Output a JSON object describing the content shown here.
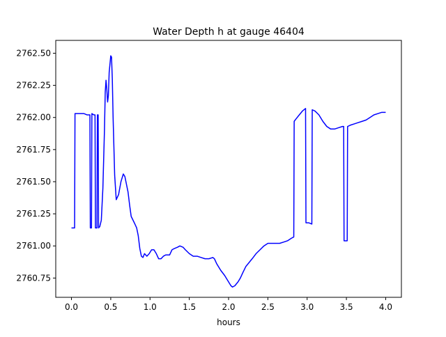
{
  "chart_data": {
    "type": "line",
    "title": "Water Depth h at gauge 46404",
    "xlabel": "hours",
    "ylabel": "",
    "xlim": [
      -0.2,
      4.2
    ],
    "ylim": [
      2760.6,
      2762.6
    ],
    "x_ticks": [
      0.0,
      0.5,
      1.0,
      1.5,
      2.0,
      2.5,
      3.0,
      3.5,
      4.0
    ],
    "x_tick_labels": [
      "0.0",
      "0.5",
      "1.0",
      "1.5",
      "2.0",
      "2.5",
      "3.0",
      "3.5",
      "4.0"
    ],
    "y_ticks": [
      2760.75,
      2761.0,
      2761.25,
      2761.5,
      2761.75,
      2762.0,
      2762.25,
      2762.5
    ],
    "y_tick_labels": [
      "2760.75",
      "2761.00",
      "2761.25",
      "2761.50",
      "2761.75",
      "2762.00",
      "2762.25",
      "2762.50"
    ],
    "grid": false,
    "legend": "none",
    "series": [
      {
        "color": "#0000ff",
        "points": [
          [
            0.0,
            2761.14
          ],
          [
            0.04,
            2761.14
          ],
          [
            0.045,
            2762.03
          ],
          [
            0.08,
            2762.03
          ],
          [
            0.12,
            2762.03
          ],
          [
            0.16,
            2762.03
          ],
          [
            0.2,
            2762.02
          ],
          [
            0.235,
            2762.02
          ],
          [
            0.24,
            2761.14
          ],
          [
            0.255,
            2761.14
          ],
          [
            0.26,
            2762.03
          ],
          [
            0.285,
            2762.02
          ],
          [
            0.3,
            2762.02
          ],
          [
            0.305,
            2761.14
          ],
          [
            0.325,
            2761.14
          ],
          [
            0.33,
            2762.02
          ],
          [
            0.34,
            2762.02
          ],
          [
            0.345,
            2761.14
          ],
          [
            0.36,
            2761.15
          ],
          [
            0.38,
            2761.2
          ],
          [
            0.4,
            2761.45
          ],
          [
            0.42,
            2761.9
          ],
          [
            0.43,
            2762.2
          ],
          [
            0.44,
            2762.29
          ],
          [
            0.45,
            2762.22
          ],
          [
            0.46,
            2762.12
          ],
          [
            0.47,
            2762.17
          ],
          [
            0.48,
            2762.35
          ],
          [
            0.5,
            2762.48
          ],
          [
            0.51,
            2762.47
          ],
          [
            0.52,
            2762.3
          ],
          [
            0.53,
            2762.0
          ],
          [
            0.55,
            2761.55
          ],
          [
            0.57,
            2761.36
          ],
          [
            0.6,
            2761.4
          ],
          [
            0.63,
            2761.5
          ],
          [
            0.66,
            2761.56
          ],
          [
            0.68,
            2761.54
          ],
          [
            0.7,
            2761.48
          ],
          [
            0.72,
            2761.42
          ],
          [
            0.74,
            2761.32
          ],
          [
            0.76,
            2761.23
          ],
          [
            0.8,
            2761.18
          ],
          [
            0.83,
            2761.14
          ],
          [
            0.85,
            2761.08
          ],
          [
            0.87,
            2760.98
          ],
          [
            0.89,
            2760.92
          ],
          [
            0.91,
            2760.91
          ],
          [
            0.93,
            2760.94
          ],
          [
            0.96,
            2760.92
          ],
          [
            0.99,
            2760.94
          ],
          [
            1.02,
            2760.97
          ],
          [
            1.05,
            2760.97
          ],
          [
            1.08,
            2760.94
          ],
          [
            1.11,
            2760.9
          ],
          [
            1.14,
            2760.9
          ],
          [
            1.17,
            2760.92
          ],
          [
            1.2,
            2760.93
          ],
          [
            1.25,
            2760.93
          ],
          [
            1.28,
            2760.97
          ],
          [
            1.31,
            2760.98
          ],
          [
            1.35,
            2760.99
          ],
          [
            1.38,
            2761.0
          ],
          [
            1.42,
            2760.99
          ],
          [
            1.45,
            2760.97
          ],
          [
            1.5,
            2760.94
          ],
          [
            1.55,
            2760.92
          ],
          [
            1.6,
            2760.92
          ],
          [
            1.65,
            2760.91
          ],
          [
            1.7,
            2760.9
          ],
          [
            1.75,
            2760.9
          ],
          [
            1.8,
            2760.91
          ],
          [
            1.82,
            2760.9
          ],
          [
            1.85,
            2760.86
          ],
          [
            1.9,
            2760.81
          ],
          [
            1.95,
            2760.77
          ],
          [
            2.0,
            2760.72
          ],
          [
            2.03,
            2760.69
          ],
          [
            2.05,
            2760.68
          ],
          [
            2.08,
            2760.69
          ],
          [
            2.12,
            2760.72
          ],
          [
            2.15,
            2760.75
          ],
          [
            2.18,
            2760.79
          ],
          [
            2.22,
            2760.84
          ],
          [
            2.3,
            2760.9
          ],
          [
            2.35,
            2760.94
          ],
          [
            2.4,
            2760.97
          ],
          [
            2.45,
            2761.0
          ],
          [
            2.5,
            2761.02
          ],
          [
            2.55,
            2761.02
          ],
          [
            2.6,
            2761.02
          ],
          [
            2.65,
            2761.02
          ],
          [
            2.7,
            2761.03
          ],
          [
            2.75,
            2761.04
          ],
          [
            2.8,
            2761.06
          ],
          [
            2.83,
            2761.07
          ],
          [
            2.835,
            2761.97
          ],
          [
            2.86,
            2761.99
          ],
          [
            2.9,
            2762.02
          ],
          [
            2.94,
            2762.05
          ],
          [
            2.98,
            2762.07
          ],
          [
            2.985,
            2761.18
          ],
          [
            3.02,
            2761.18
          ],
          [
            3.06,
            2761.17
          ],
          [
            3.065,
            2762.06
          ],
          [
            3.1,
            2762.05
          ],
          [
            3.15,
            2762.02
          ],
          [
            3.2,
            2761.97
          ],
          [
            3.25,
            2761.93
          ],
          [
            3.3,
            2761.91
          ],
          [
            3.35,
            2761.91
          ],
          [
            3.4,
            2761.92
          ],
          [
            3.45,
            2761.93
          ],
          [
            3.465,
            2761.93
          ],
          [
            3.47,
            2761.04
          ],
          [
            3.51,
            2761.04
          ],
          [
            3.515,
            2761.93
          ],
          [
            3.55,
            2761.94
          ],
          [
            3.6,
            2761.95
          ],
          [
            3.65,
            2761.96
          ],
          [
            3.7,
            2761.97
          ],
          [
            3.75,
            2761.98
          ],
          [
            3.8,
            2762.0
          ],
          [
            3.85,
            2762.02
          ],
          [
            3.9,
            2762.03
          ],
          [
            3.95,
            2762.04
          ],
          [
            4.0,
            2762.04
          ]
        ]
      }
    ]
  }
}
